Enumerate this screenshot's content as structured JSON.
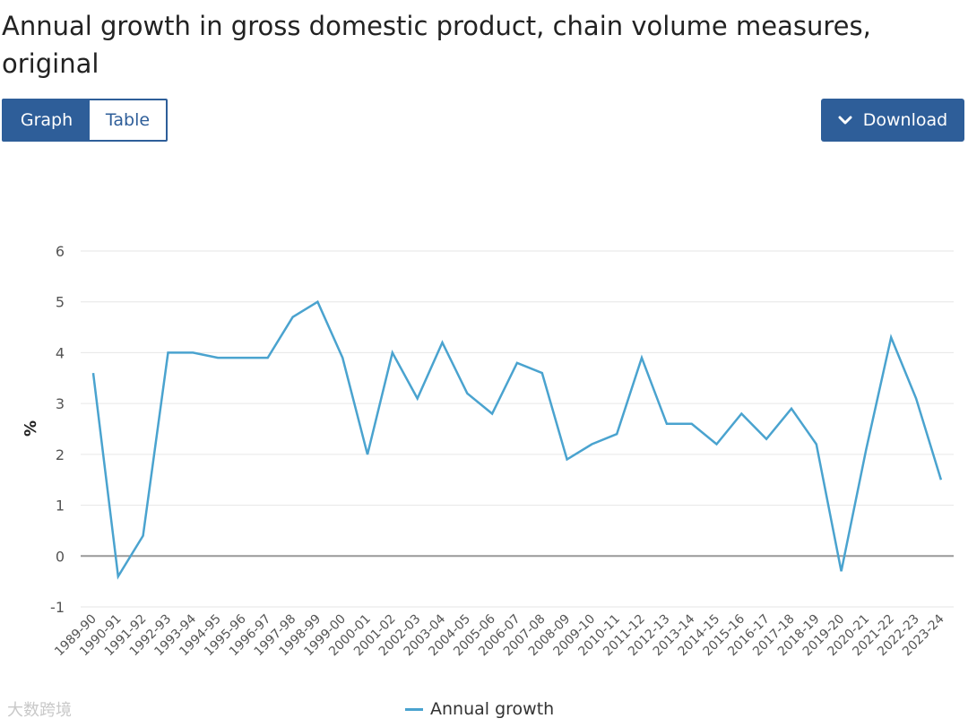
{
  "page": {
    "title": "Annual growth in gross domestic product, chain volume measures, original"
  },
  "toggle": {
    "graph_label": "Graph",
    "table_label": "Table"
  },
  "download": {
    "label": "Download",
    "icon": "chevron-down-icon"
  },
  "watermark": "大数跨境",
  "colors": {
    "accent": "#2e5e99",
    "series": "#4aa3cf",
    "grid": "#e6e6e6",
    "zero_line": "#999999"
  },
  "chart_data": {
    "type": "line",
    "title": "Annual growth in gross domestic product, chain volume measures, original",
    "xlabel": "",
    "ylabel": "%",
    "ylim": [
      -1,
      6
    ],
    "yticks": [
      -1,
      0,
      1,
      2,
      3,
      4,
      5,
      6
    ],
    "grid": true,
    "legend_position": "bottom-center",
    "categories": [
      "1989-90",
      "1990-91",
      "1991-92",
      "1992-93",
      "1993-94",
      "1994-95",
      "1995-96",
      "1996-97",
      "1997-98",
      "1998-99",
      "1999-00",
      "2000-01",
      "2001-02",
      "2002-03",
      "2003-04",
      "2004-05",
      "2005-06",
      "2006-07",
      "2007-08",
      "2008-09",
      "2009-10",
      "2010-11",
      "2011-12",
      "2012-13",
      "2013-14",
      "2014-15",
      "2015-16",
      "2016-17",
      "2017-18",
      "2018-19",
      "2019-20",
      "2020-21",
      "2021-22",
      "2022-23",
      "2023-24"
    ],
    "series": [
      {
        "name": "Annual growth",
        "values": [
          3.6,
          -0.4,
          0.4,
          4.0,
          4.0,
          3.9,
          3.9,
          3.9,
          4.7,
          5.0,
          3.9,
          2.0,
          4.0,
          3.1,
          4.2,
          3.2,
          2.8,
          3.8,
          3.6,
          1.9,
          2.2,
          2.4,
          3.9,
          2.6,
          2.6,
          2.2,
          2.8,
          2.3,
          2.9,
          2.2,
          -0.3,
          2.1,
          4.3,
          3.1,
          1.5
        ]
      }
    ]
  }
}
